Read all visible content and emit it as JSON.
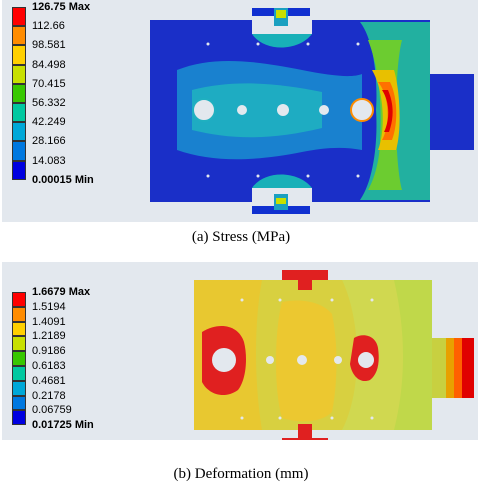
{
  "colors": {
    "panel_bg": "#e3e8ee",
    "scale": [
      "#ff0000",
      "#ff8c00",
      "#ffd000",
      "#c8e000",
      "#38c800",
      "#00c8a0",
      "#00a8d8",
      "#0078e0",
      "#0000e0"
    ]
  },
  "panel_a": {
    "caption": "(a) Stress (MPa)",
    "legend": [
      {
        "label": "126.75 Max",
        "bold": true,
        "color": "#ff0000"
      },
      {
        "label": "112.66",
        "color": "#ff8c00"
      },
      {
        "label": "98.581",
        "color": "#ffd000"
      },
      {
        "label": "84.498",
        "color": "#c8e000"
      },
      {
        "label": "70.415",
        "color": "#38c800"
      },
      {
        "label": "56.332",
        "color": "#00c8a0"
      },
      {
        "label": "42.249",
        "color": "#00a8d8"
      },
      {
        "label": "28.166",
        "color": "#0078e0"
      },
      {
        "label": "14.083",
        "color": "#0000e0"
      },
      {
        "label": "0.00015 Min",
        "bold": true
      }
    ]
  },
  "panel_b": {
    "caption": "(b) Deformation (mm)",
    "legend": [
      {
        "label": "1.6679 Max",
        "bold": true,
        "color": "#ff0000"
      },
      {
        "label": "1.5194",
        "color": "#ff8c00"
      },
      {
        "label": "1.4091",
        "color": "#ffd000"
      },
      {
        "label": "1.2189",
        "color": "#c8e000"
      },
      {
        "label": "0.9186",
        "color": "#38c800"
      },
      {
        "label": "0.6183",
        "color": "#00c8a0"
      },
      {
        "label": "0.4681",
        "color": "#00a8d8"
      },
      {
        "label": "0.2178",
        "color": "#0078e0"
      },
      {
        "label": "0.06759",
        "color": "#0000e0"
      },
      {
        "label": "0.01725 Min",
        "bold": true
      }
    ]
  }
}
